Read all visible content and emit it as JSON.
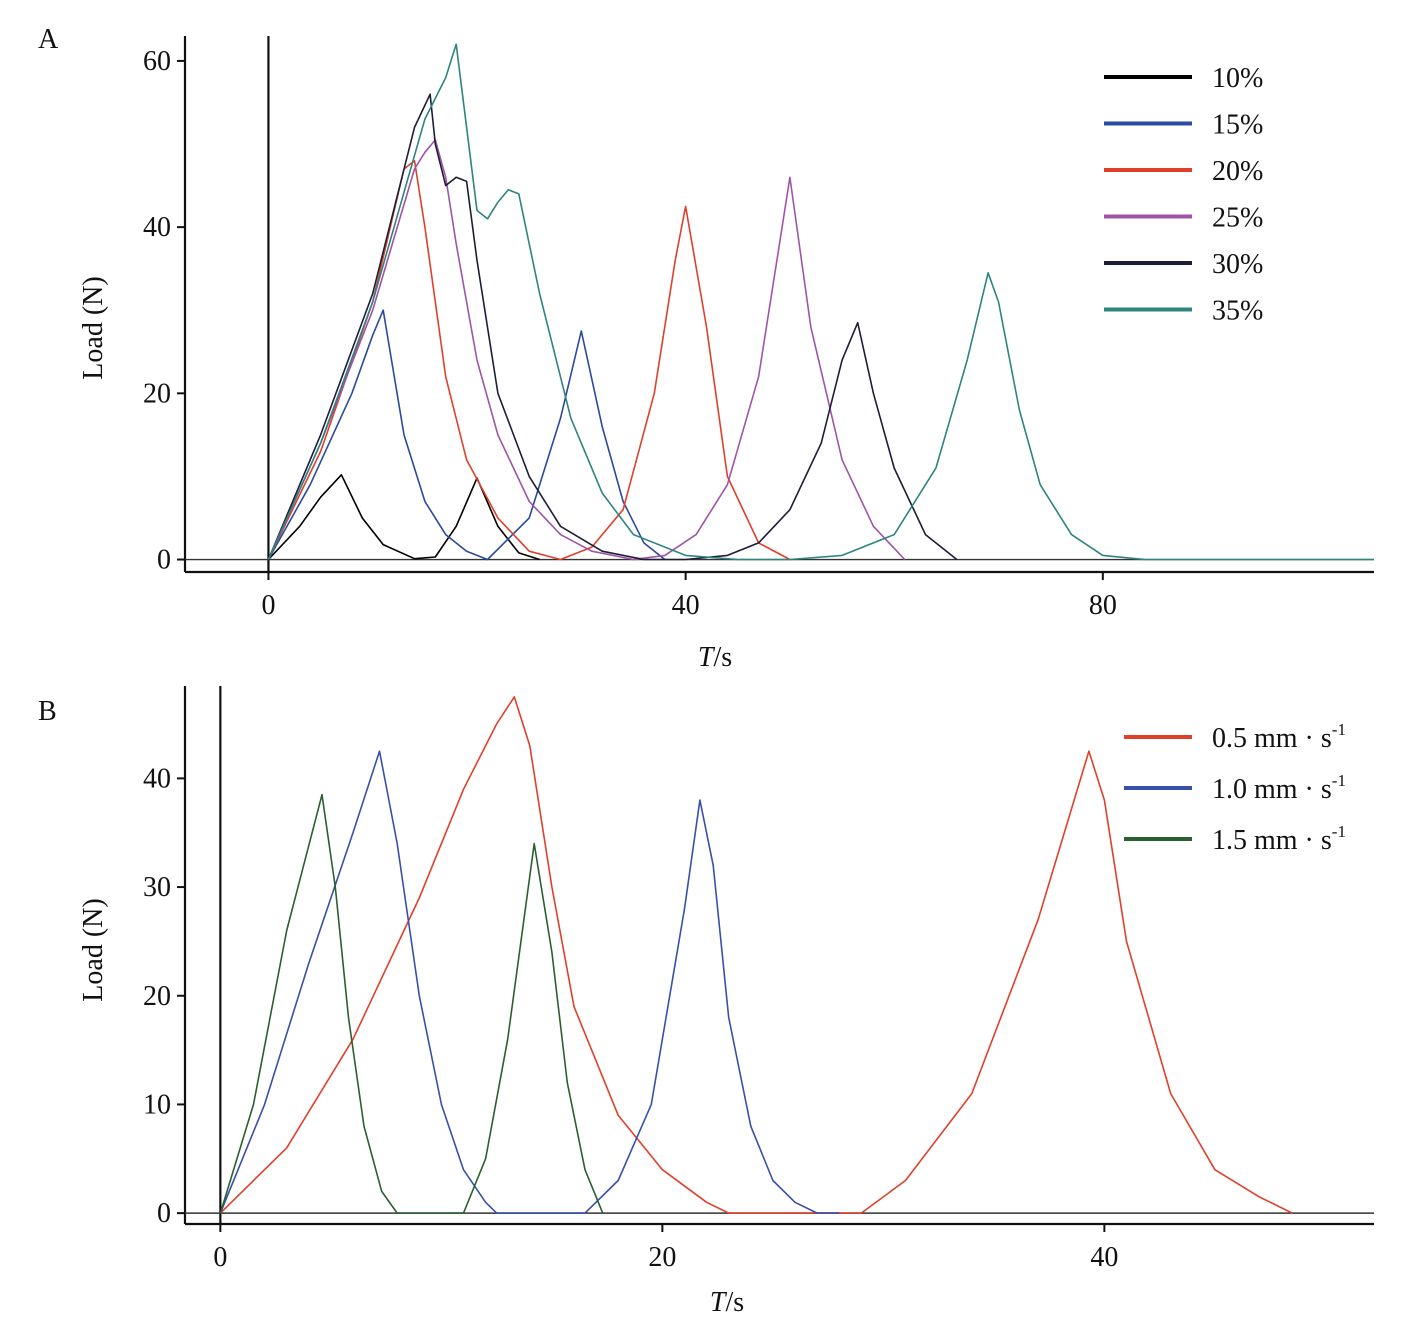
{
  "figure": {
    "panels": [
      "A",
      "B"
    ]
  },
  "chart_data": [
    {
      "type": "line",
      "panel_label": "A",
      "xlabel": "T/s",
      "ylabel": "Load (N)",
      "xlim": [
        -8,
        106
      ],
      "ylim": [
        -1.5,
        63
      ],
      "xticks": [
        0,
        40,
        80
      ],
      "yticks": [
        0,
        20,
        40,
        60
      ],
      "zero_lines": true,
      "legend_position": "top-right",
      "series": [
        {
          "name": "10%",
          "color": "#000000",
          "x": [
            0,
            3,
            5,
            7,
            9,
            11,
            14,
            16,
            18,
            20,
            22,
            24,
            26
          ],
          "y": [
            0,
            4,
            7.5,
            10.2,
            5,
            1.8,
            0.1,
            0.3,
            4,
            9.8,
            4,
            0.8,
            0
          ]
        },
        {
          "name": "15%",
          "color": "#2a4aa0",
          "x": [
            0,
            4,
            8,
            10,
            11,
            13,
            15,
            17,
            19,
            21,
            25,
            28,
            30,
            32,
            34,
            36,
            38
          ],
          "y": [
            0,
            9,
            20,
            27,
            30,
            15,
            7,
            3,
            1,
            0,
            5,
            17,
            27.5,
            16,
            7,
            2,
            0
          ]
        },
        {
          "name": "20%",
          "color": "#e0402a",
          "x": [
            0,
            5,
            10,
            13,
            14,
            15,
            17,
            19,
            22,
            25,
            28,
            31,
            34,
            37,
            39,
            40,
            42,
            44,
            47,
            50
          ],
          "y": [
            0,
            13,
            31,
            47,
            48,
            40,
            22,
            12,
            5,
            1,
            0,
            1.5,
            6,
            20,
            36,
            42.5,
            28,
            10,
            2,
            0
          ]
        },
        {
          "name": "25%",
          "color": "#a054a8",
          "x": [
            0,
            5,
            10,
            14,
            15,
            16,
            17,
            18,
            20,
            22,
            25,
            28,
            31,
            35,
            38,
            41,
            44,
            47,
            49,
            50,
            52,
            55,
            58,
            61
          ],
          "y": [
            0,
            14,
            30,
            47,
            49,
            50.5,
            46,
            38,
            24,
            15,
            7,
            3,
            1,
            0,
            0.5,
            3,
            9,
            22,
            38,
            46,
            28,
            12,
            4,
            0
          ]
        },
        {
          "name": "30%",
          "color": "#1d1d38",
          "x": [
            0,
            5,
            10,
            14,
            15.5,
            16,
            17,
            18,
            19,
            20,
            22,
            25,
            28,
            32,
            36,
            40,
            44,
            47,
            50,
            53,
            55,
            56.5,
            58,
            60,
            63,
            66
          ],
          "y": [
            0,
            15,
            32,
            52,
            56,
            50,
            45,
            46,
            45.5,
            36,
            20,
            10,
            4,
            1,
            0,
            0,
            0.5,
            2,
            6,
            14,
            24,
            28.5,
            20,
            11,
            3,
            0
          ]
        },
        {
          "name": "35%",
          "color": "#2e8480",
          "x": [
            0,
            5,
            10,
            15,
            17,
            18,
            19,
            20,
            21,
            22,
            23,
            24,
            26,
            29,
            32,
            35,
            40,
            45,
            50,
            55,
            60,
            64,
            67,
            69,
            70,
            72,
            74,
            77,
            80,
            84,
            90,
            106
          ],
          "y": [
            0,
            14,
            31,
            53,
            58,
            62,
            52,
            42,
            41,
            43,
            44.5,
            44,
            32,
            17,
            8,
            3,
            0.5,
            0,
            0,
            0.5,
            3,
            11,
            24,
            34.5,
            31,
            18,
            9,
            3,
            0.5,
            0,
            0,
            0
          ]
        }
      ]
    },
    {
      "type": "line",
      "panel_label": "B",
      "xlabel": "T/s",
      "ylabel": "Load (N)",
      "xlim": [
        -1.6,
        52.2
      ],
      "ylim": [
        -1.0,
        48.5
      ],
      "xticks": [
        0,
        20,
        40
      ],
      "yticks": [
        0,
        10,
        20,
        30,
        40
      ],
      "zero_lines": true,
      "legend_position": "top-right",
      "series": [
        {
          "name": "0.5 mm·s⁻¹",
          "label_main": "0.5 mm",
          "label_unit": "s",
          "label_exp": "-1",
          "color": "#e0402a",
          "x": [
            0,
            3,
            6,
            9,
            11,
            12.5,
            13.3,
            14,
            15,
            16,
            18,
            20,
            22,
            23,
            29,
            31,
            34,
            37,
            39.3,
            40,
            41,
            43,
            45,
            47,
            48.5
          ],
          "y": [
            0,
            6,
            16,
            29,
            39,
            45,
            47.5,
            43,
            30,
            19,
            9,
            4,
            1,
            0,
            0,
            3,
            11,
            27,
            42.5,
            38,
            25,
            11,
            4,
            1.5,
            0
          ]
        },
        {
          "name": "1.0 mm·s⁻¹",
          "label_main": "1.0 mm",
          "label_unit": "s",
          "label_exp": "-1",
          "color": "#3850a8",
          "x": [
            0,
            2,
            4,
            6,
            7.2,
            8,
            9,
            10,
            11,
            12,
            12.5,
            16.5,
            18,
            19.5,
            21,
            21.7,
            22.3,
            23,
            24,
            25,
            26,
            27,
            28
          ],
          "y": [
            0,
            10,
            23,
            35,
            42.5,
            34,
            20,
            10,
            4,
            1,
            0,
            0,
            3,
            10,
            28,
            38,
            32,
            18,
            8,
            3,
            1,
            0,
            0
          ]
        },
        {
          "name": "1.5 mm·s⁻¹",
          "label_main": "1.5 mm",
          "label_unit": "s",
          "label_exp": "-1",
          "color": "#2a6030",
          "x": [
            0,
            1.5,
            3,
            4.6,
            5.2,
            5.8,
            6.5,
            7.3,
            8,
            11,
            12,
            13,
            14.2,
            15,
            15.7,
            16.5,
            17.3
          ],
          "y": [
            0,
            10,
            26,
            38.5,
            30,
            18,
            8,
            2,
            0,
            0,
            5,
            16,
            34,
            24,
            12,
            4,
            0
          ]
        }
      ]
    }
  ]
}
